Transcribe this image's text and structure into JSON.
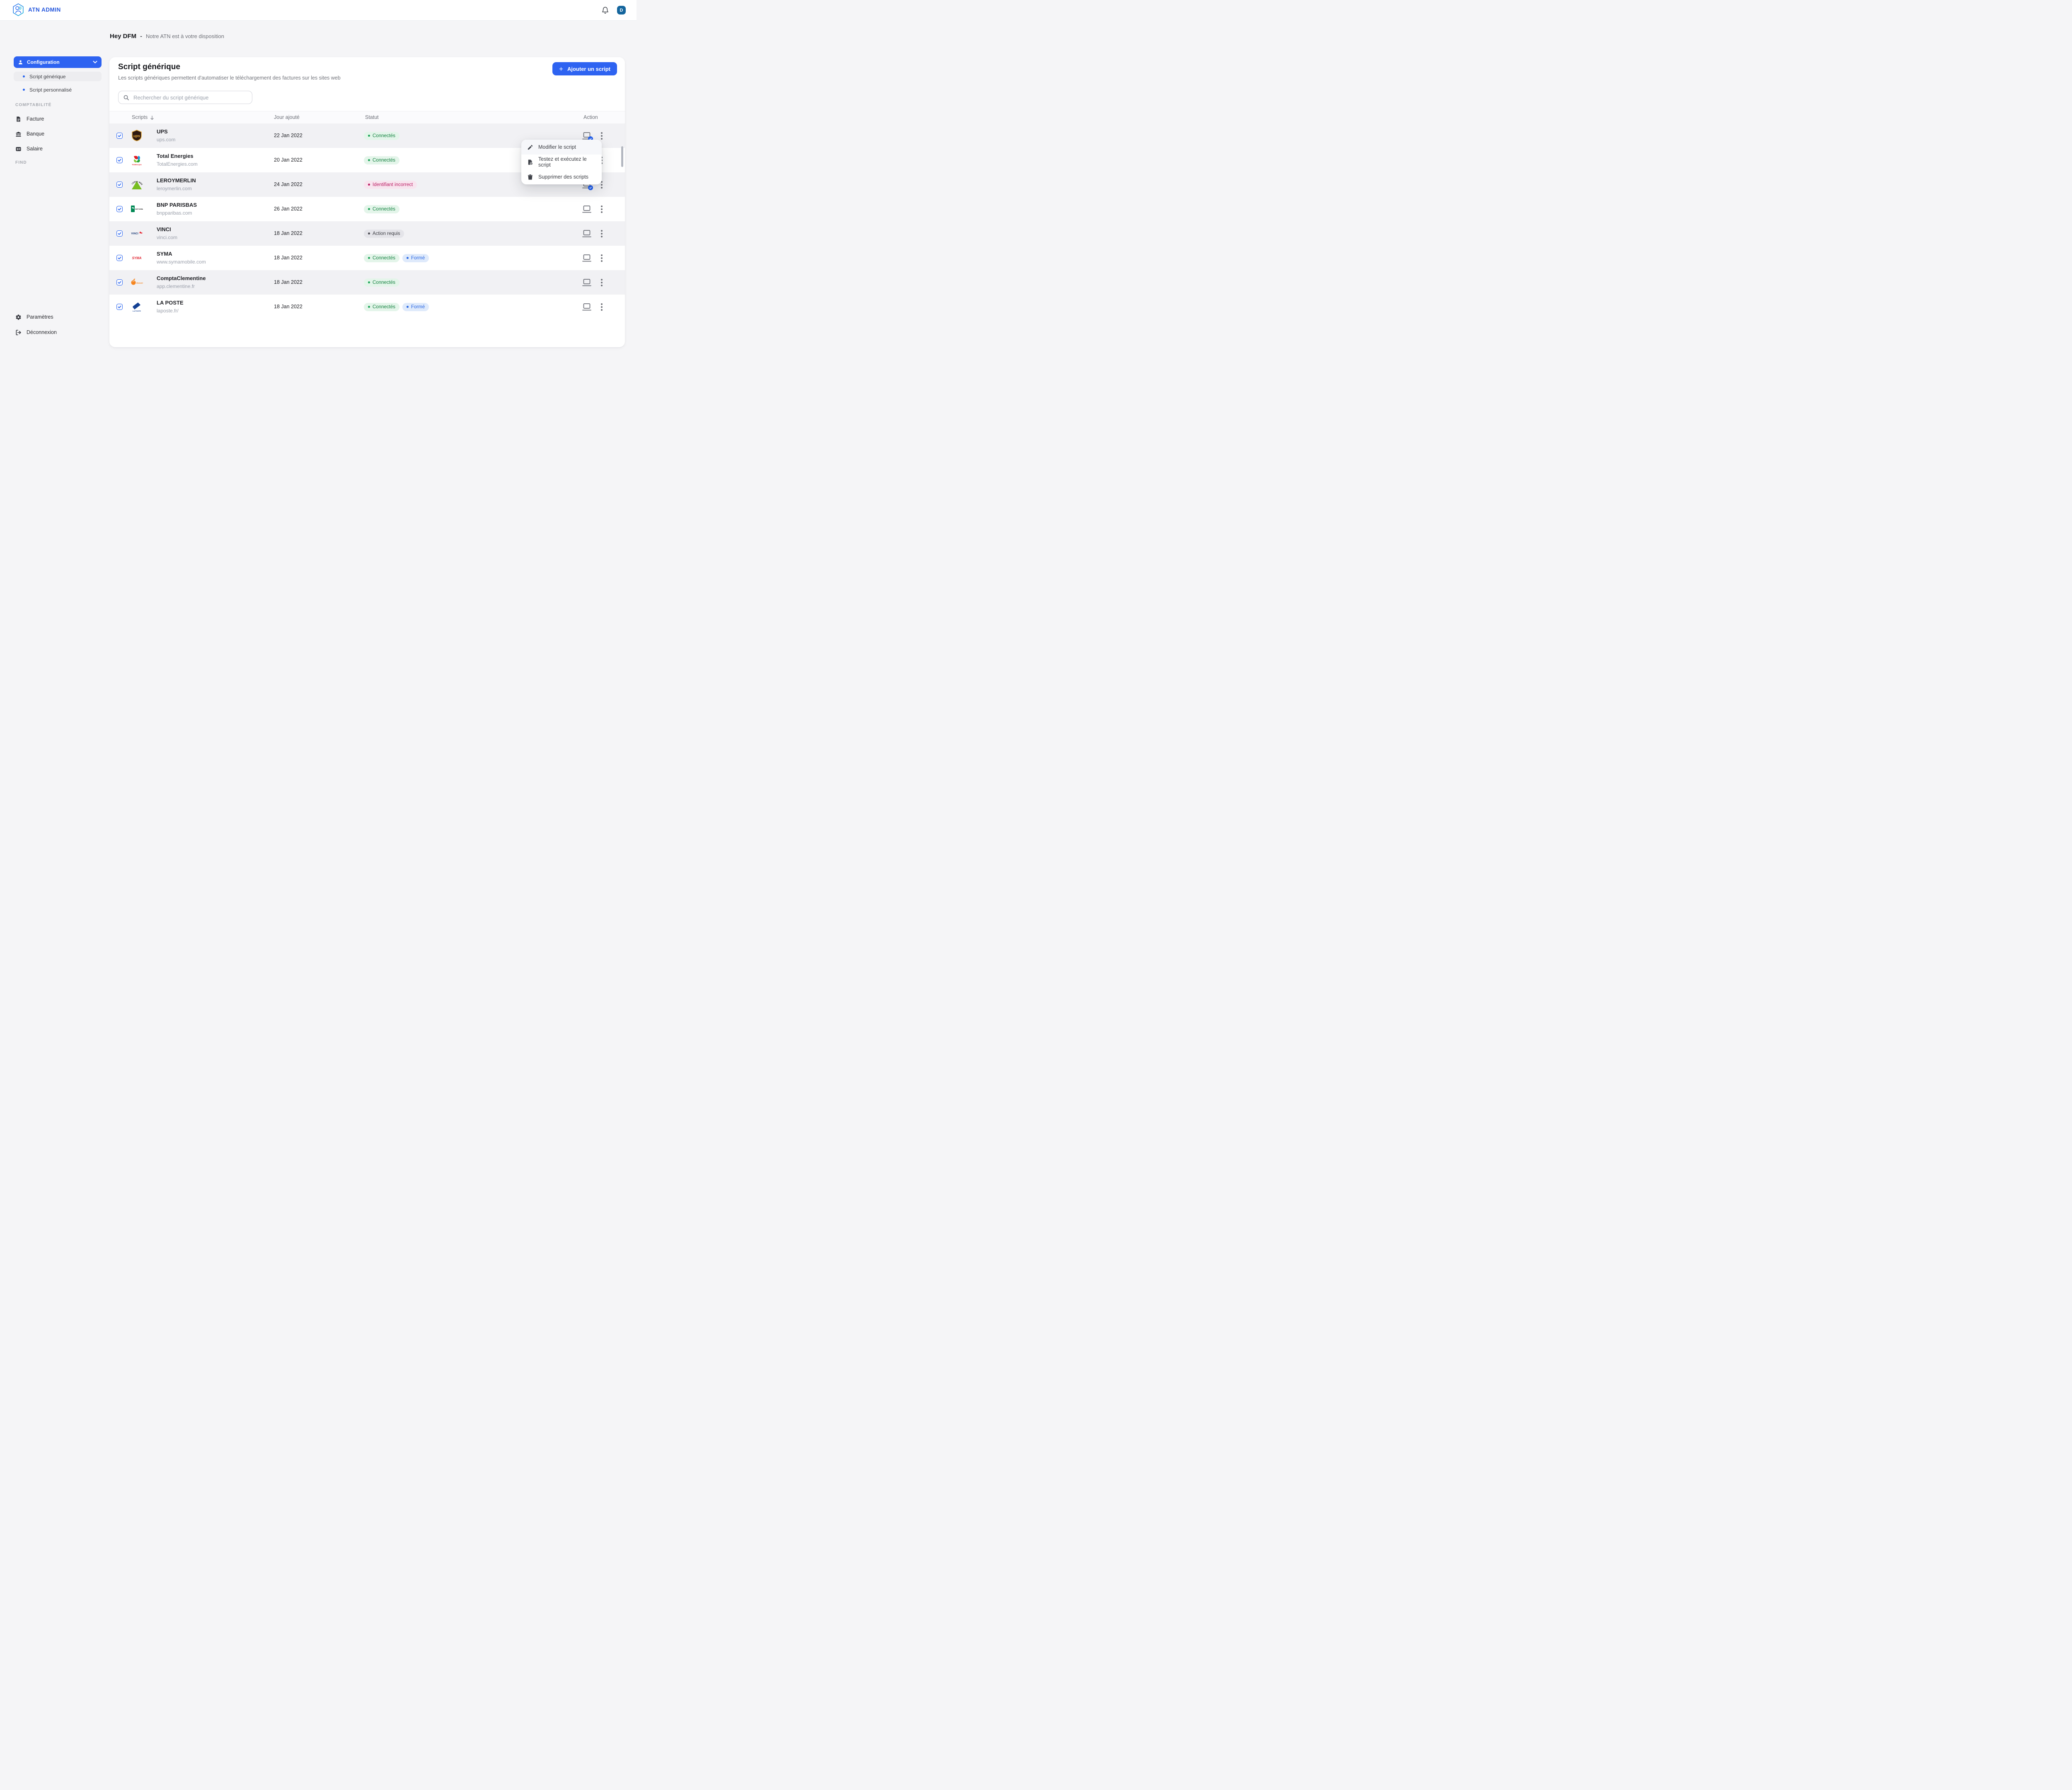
{
  "topbar": {
    "brand": "ATN ADMIN",
    "avatar_initial": "D"
  },
  "greeting": {
    "title": "Hey DFM",
    "dash": "-",
    "subtitle": "Notre ATN est à votre disposition"
  },
  "sidebar": {
    "configuration": {
      "label": "Configuration",
      "icon": "person-icon"
    },
    "config_children": [
      {
        "label": "Script générique",
        "active": true
      },
      {
        "label": "Script personnalisé",
        "active": false
      }
    ],
    "sections": [
      {
        "label": "COMPTABILITÉ",
        "items": [
          {
            "label": "Facture",
            "icon": "invoice-icon"
          },
          {
            "label": "Banque",
            "icon": "bank-icon"
          },
          {
            "label": "Salaire",
            "icon": "salary-icon"
          }
        ]
      },
      {
        "label": "FIND",
        "items": []
      }
    ],
    "footer_items": [
      {
        "label": "Paramètres",
        "icon": "gear-icon"
      },
      {
        "label": "Déconnexion",
        "icon": "logout-icon"
      }
    ]
  },
  "main": {
    "title": "Script générique",
    "subtitle": "Les scripts génériques permettent d'automatiser le téléchargement des factures sur les sites web",
    "add_button": "Ajouter un script",
    "search_placeholder": "Rechercher du script générique",
    "table": {
      "columns": [
        "Scripts",
        "Jour ajouté",
        "Statut",
        "Action"
      ],
      "rows": [
        {
          "logo": "ups",
          "name": "UPS",
          "domain": "ups.com",
          "date": "22 Jan 2022",
          "badges": [
            {
              "label": "Connectés",
              "type": "success"
            }
          ],
          "checked": true,
          "laptop_checked": true
        },
        {
          "logo": "totalenergies",
          "name": "Total Energies",
          "domain": "TotalEnergies.com",
          "date": "20 Jan 2022",
          "badges": [
            {
              "label": "Connectés",
              "type": "success"
            }
          ],
          "checked": true,
          "laptop_checked": false
        },
        {
          "logo": "leroymerlin",
          "name": "LEROYMERLIN",
          "domain": "leroymerlin.com",
          "date": "24 Jan 2022",
          "badges": [
            {
              "label": "Identifiant incorrect",
              "type": "error"
            }
          ],
          "checked": true,
          "laptop_checked": true
        },
        {
          "logo": "bnp",
          "name": "BNP PARISBAS",
          "domain": "bnpparibas.com",
          "date": "26 Jan 2022",
          "badges": [
            {
              "label": "Connectés",
              "type": "success"
            }
          ],
          "checked": true,
          "laptop_checked": false
        },
        {
          "logo": "vinci",
          "name": "VINCI",
          "domain": "vinci.com",
          "date": "18 Jan 2022",
          "badges": [
            {
              "label": "Action requis",
              "type": "neutral"
            }
          ],
          "checked": true,
          "laptop_checked": false
        },
        {
          "logo": "syma",
          "name": "SYMA",
          "domain": "www.symamobile.com",
          "date": "18 Jan 2022",
          "badges": [
            {
              "label": "Connectés",
              "type": "success"
            },
            {
              "label": "Formé",
              "type": "info"
            }
          ],
          "checked": true,
          "laptop_checked": false
        },
        {
          "logo": "clementine",
          "name": "ComptaClementine",
          "domain": "app.clementine.fr",
          "date": "18 Jan 2022",
          "badges": [
            {
              "label": "Connectés",
              "type": "success"
            }
          ],
          "checked": true,
          "laptop_checked": false
        },
        {
          "logo": "laposte",
          "name": "LA POSTE",
          "domain": "laposte.fr/",
          "date": "18 Jan 2022",
          "badges": [
            {
              "label": "Connectés",
              "type": "success"
            },
            {
              "label": "Formé",
              "type": "info"
            }
          ],
          "checked": true,
          "laptop_checked": false
        }
      ]
    }
  },
  "context_menu": {
    "items": [
      {
        "label": "Modifier le script",
        "icon": "pencil-icon"
      },
      {
        "label": "Testez et exécutez le script",
        "icon": "test-script-icon"
      },
      {
        "label": "Supprimer des scripts",
        "icon": "trash-icon"
      }
    ]
  },
  "colors": {
    "primary": "#2e63f1",
    "brand_text": "#2356dd",
    "avatar_bg": "#14659d",
    "badge_success_bg": "#e4f5ea",
    "badge_success_text": "#13813f",
    "badge_error_bg": "#f8e5ef",
    "badge_error_text": "#bb2065",
    "badge_neutral_bg": "#e4e4e9",
    "badge_neutral_text": "#3e3f45",
    "badge_info_bg": "#dfeafb",
    "badge_info_text": "#2b69e4",
    "row_alt_bg": "#f1f1f4"
  }
}
